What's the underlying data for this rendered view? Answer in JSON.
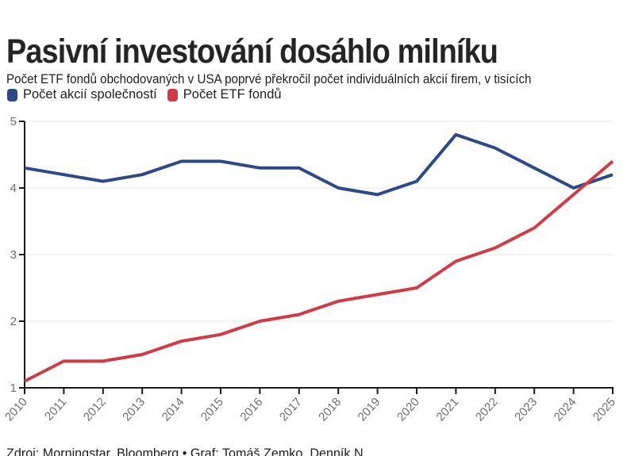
{
  "header": {
    "title": "Pasivní investování dosáhlo milníku",
    "subtitle": "Počet ETF fondů obchodovaných v USA poprvé překročil počet individuálních akcií firem, v tisících"
  },
  "legend": {
    "items": [
      {
        "label": "Počet akcií společností",
        "color": "#2b4a87"
      },
      {
        "label": "Počet ETF fondů",
        "color": "#d23b44"
      }
    ]
  },
  "chart_data": {
    "type": "line",
    "title": "Pasivní investování dosáhlo milníku",
    "subtitle": "Počet ETF fondů obchodovaných v USA poprvé překročil počet individuálních akcií firem, v tisících",
    "xlabel": "",
    "ylabel": "",
    "x": [
      2010,
      2011,
      2012,
      2013,
      2014,
      2015,
      2016,
      2017,
      2018,
      2019,
      2020,
      2021,
      2022,
      2023,
      2024,
      2025
    ],
    "series": [
      {
        "name": "Počet akcií společností",
        "color": "#2b4a87",
        "values": [
          4.3,
          4.2,
          4.1,
          4.2,
          4.4,
          4.4,
          4.3,
          4.3,
          4.0,
          3.9,
          4.1,
          4.8,
          4.6,
          4.3,
          4.0,
          4.2
        ]
      },
      {
        "name": "Počet ETF fondů",
        "color": "#d23b44",
        "values": [
          1.1,
          1.4,
          1.4,
          1.5,
          1.7,
          1.8,
          2.0,
          2.1,
          2.3,
          2.4,
          2.5,
          2.9,
          3.1,
          3.4,
          3.9,
          4.4
        ]
      }
    ],
    "ylim": [
      1,
      5
    ],
    "yticks": [
      1,
      2,
      3,
      4,
      5
    ],
    "grid": true,
    "legend_position": "top"
  },
  "colors": {
    "axis": "#1a1a1a",
    "grid": "#e7e7e7",
    "tick_label": "#6e6e6e"
  },
  "footer": {
    "text": "Zdroj: Morningstar, Bloomberg • Graf: Tomáš Zemko, Denník N"
  }
}
